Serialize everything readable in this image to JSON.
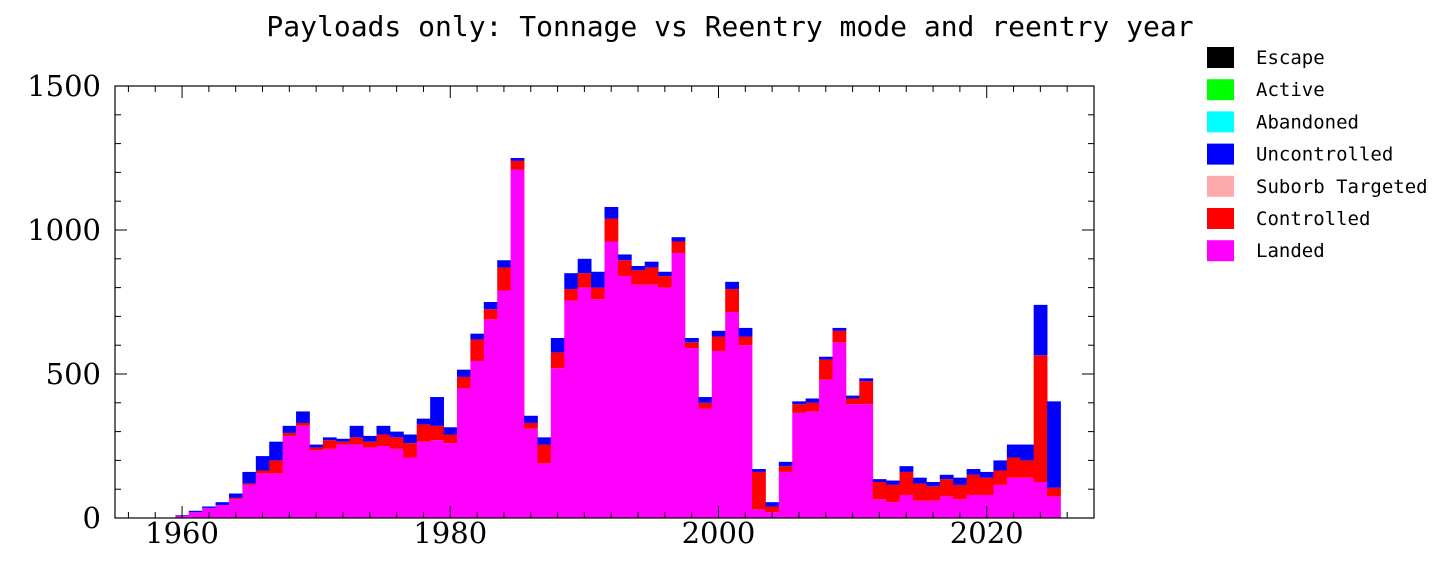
{
  "chart_data": {
    "type": "bar",
    "stacked": true,
    "title": "Payloads only: Tonnage vs Reentry mode and reentry year",
    "xlabel": "",
    "ylabel": "",
    "xlim": [
      1955,
      2028
    ],
    "ylim": [
      0,
      1500
    ],
    "x_ticks": [
      1960,
      1980,
      2000,
      2020
    ],
    "y_ticks": [
      0,
      500,
      1000,
      1500
    ],
    "grid": false,
    "legend_position": "right",
    "categories": [
      1957,
      1958,
      1959,
      1960,
      1961,
      1962,
      1963,
      1964,
      1965,
      1966,
      1967,
      1968,
      1969,
      1970,
      1971,
      1972,
      1973,
      1974,
      1975,
      1976,
      1977,
      1978,
      1979,
      1980,
      1981,
      1982,
      1983,
      1984,
      1985,
      1986,
      1987,
      1988,
      1989,
      1990,
      1991,
      1992,
      1993,
      1994,
      1995,
      1996,
      1997,
      1998,
      1999,
      2000,
      2001,
      2002,
      2003,
      2004,
      2005,
      2006,
      2007,
      2008,
      2009,
      2010,
      2011,
      2012,
      2013,
      2014,
      2015,
      2016,
      2017,
      2018,
      2019,
      2020,
      2021,
      2022,
      2023,
      2024,
      2025
    ],
    "series": [
      {
        "name": "Escape",
        "color": "#000000",
        "values": [
          0,
          0,
          0,
          0,
          0,
          0,
          0,
          0,
          0,
          0,
          0,
          0,
          0,
          0,
          0,
          0,
          0,
          0,
          0,
          0,
          0,
          0,
          0,
          0,
          0,
          0,
          0,
          0,
          0,
          0,
          0,
          0,
          0,
          0,
          0,
          0,
          0,
          0,
          0,
          0,
          0,
          0,
          0,
          0,
          0,
          0,
          0,
          0,
          0,
          0,
          0,
          0,
          0,
          0,
          0,
          0,
          0,
          0,
          0,
          0,
          0,
          0,
          0,
          0,
          0,
          0,
          0,
          0,
          0
        ]
      },
      {
        "name": "Active",
        "color": "#00ff00",
        "values": [
          0,
          0,
          0,
          0,
          0,
          0,
          0,
          0,
          0,
          0,
          0,
          0,
          0,
          0,
          0,
          0,
          0,
          0,
          0,
          0,
          0,
          0,
          0,
          0,
          0,
          0,
          0,
          0,
          0,
          0,
          0,
          0,
          0,
          0,
          0,
          0,
          0,
          0,
          0,
          0,
          0,
          0,
          0,
          0,
          0,
          0,
          0,
          0,
          0,
          0,
          0,
          0,
          0,
          0,
          0,
          0,
          0,
          0,
          0,
          0,
          0,
          0,
          0,
          0,
          0,
          0,
          0,
          0,
          0
        ]
      },
      {
        "name": "Abandoned",
        "color": "#00ffff",
        "values": [
          0,
          0,
          0,
          0,
          0,
          0,
          0,
          0,
          0,
          0,
          0,
          0,
          0,
          0,
          0,
          0,
          0,
          0,
          0,
          0,
          0,
          0,
          0,
          0,
          0,
          0,
          0,
          0,
          0,
          0,
          0,
          0,
          0,
          0,
          0,
          0,
          0,
          0,
          0,
          0,
          0,
          0,
          0,
          0,
          0,
          0,
          0,
          0,
          0,
          0,
          0,
          0,
          0,
          0,
          0,
          0,
          0,
          0,
          0,
          0,
          0,
          0,
          0,
          0,
          0,
          0,
          0,
          0,
          0
        ]
      },
      {
        "name": "Uncontrolled",
        "color": "#0000ff",
        "values": [
          0,
          0,
          0,
          2,
          5,
          5,
          10,
          15,
          40,
          50,
          65,
          25,
          40,
          10,
          10,
          10,
          40,
          20,
          30,
          20,
          30,
          20,
          100,
          25,
          25,
          20,
          25,
          25,
          10,
          25,
          25,
          50,
          55,
          50,
          55,
          40,
          20,
          15,
          20,
          15,
          15,
          15,
          20,
          20,
          25,
          30,
          10,
          15,
          15,
          10,
          15,
          10,
          10,
          10,
          10,
          10,
          15,
          20,
          20,
          15,
          15,
          25,
          20,
          20,
          35,
          45,
          55,
          175,
          300
        ]
      },
      {
        "name": "Suborb Targeted",
        "color": "#ffaaaa",
        "values": [
          0,
          0,
          0,
          0,
          0,
          0,
          0,
          0,
          0,
          0,
          0,
          0,
          0,
          0,
          0,
          0,
          0,
          0,
          0,
          0,
          0,
          0,
          0,
          0,
          0,
          0,
          0,
          0,
          0,
          0,
          0,
          0,
          0,
          0,
          0,
          0,
          0,
          0,
          0,
          0,
          0,
          0,
          0,
          0,
          0,
          0,
          0,
          0,
          0,
          0,
          0,
          0,
          0,
          0,
          0,
          0,
          0,
          0,
          0,
          0,
          0,
          0,
          0,
          0,
          0,
          0,
          0,
          0,
          0
        ]
      },
      {
        "name": "Controlled",
        "color": "#ff0000",
        "values": [
          0,
          0,
          0,
          0,
          0,
          0,
          0,
          5,
          5,
          10,
          45,
          10,
          10,
          10,
          30,
          10,
          25,
          20,
          40,
          40,
          50,
          60,
          50,
          30,
          40,
          75,
          35,
          80,
          30,
          20,
          65,
          55,
          40,
          50,
          40,
          80,
          55,
          50,
          60,
          40,
          40,
          20,
          20,
          50,
          80,
          30,
          130,
          20,
          20,
          30,
          30,
          70,
          40,
          20,
          80,
          60,
          60,
          80,
          60,
          50,
          60,
          50,
          70,
          60,
          50,
          70,
          60,
          440,
          30
        ]
      },
      {
        "name": "Landed",
        "color": "#ff00ff",
        "values": [
          0,
          0,
          0,
          8,
          20,
          35,
          45,
          65,
          115,
          155,
          155,
          285,
          320,
          235,
          240,
          255,
          255,
          245,
          250,
          240,
          210,
          265,
          270,
          260,
          450,
          545,
          690,
          790,
          1210,
          310,
          190,
          520,
          755,
          800,
          760,
          960,
          840,
          810,
          810,
          800,
          920,
          590,
          380,
          580,
          715,
          600,
          30,
          20,
          160,
          365,
          370,
          480,
          610,
          395,
          395,
          65,
          55,
          80,
          60,
          60,
          75,
          65,
          80,
          80,
          115,
          140,
          140,
          125,
          75
        ]
      }
    ]
  }
}
